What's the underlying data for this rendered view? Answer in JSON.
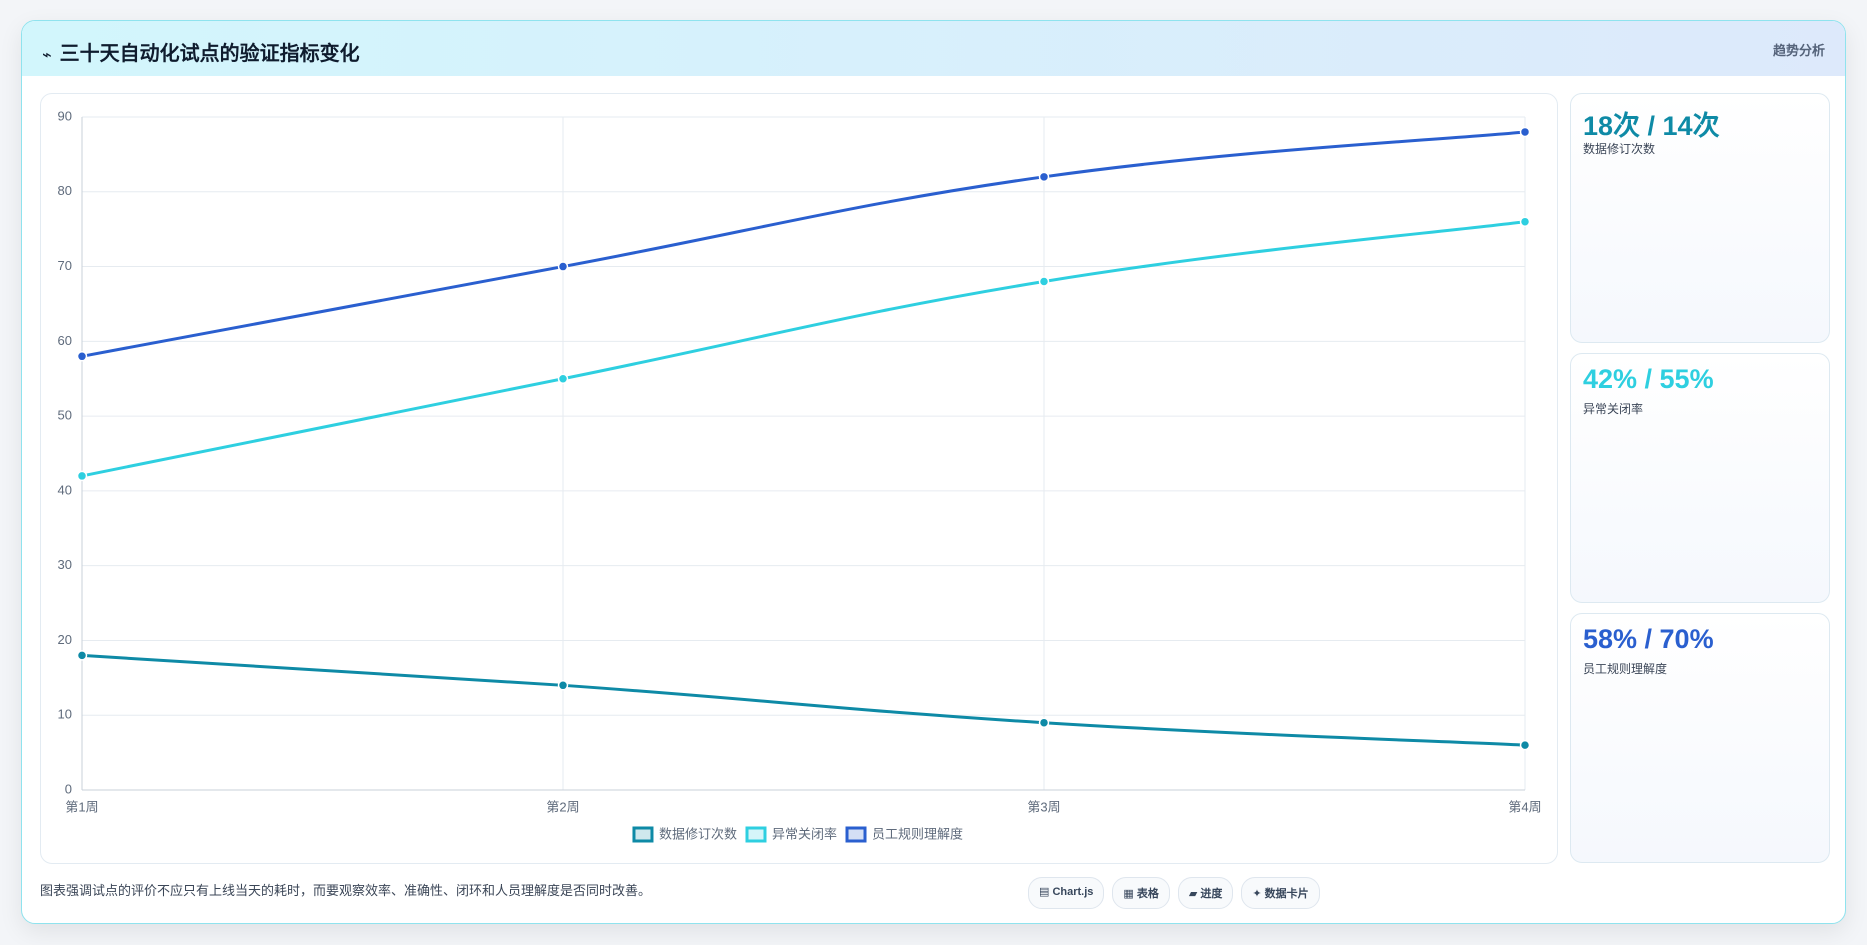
{
  "header": {
    "icon": "⌁",
    "title": "三十天自动化试点的验证指标变化",
    "tag": "趋势分析"
  },
  "chart_data": {
    "type": "line",
    "categories": [
      "第1周",
      "第2周",
      "第3周",
      "第4周"
    ],
    "series": [
      {
        "name": "数据修订次数",
        "color": "#0e8aa6",
        "values": [
          18,
          14,
          9,
          6
        ]
      },
      {
        "name": "异常关闭率",
        "color": "#2ecfe0",
        "values": [
          42,
          55,
          68,
          76
        ]
      },
      {
        "name": "员工规则理解度",
        "color": "#2a5fcf",
        "values": [
          58,
          70,
          82,
          88
        ]
      }
    ],
    "ylim": [
      0,
      90
    ],
    "yticks": [
      0,
      10,
      20,
      30,
      40,
      50,
      60,
      70,
      80,
      90
    ],
    "grid": true,
    "legend": "bottom"
  },
  "cards": [
    {
      "value": "18次 / 14次",
      "label": "数据修订次数"
    },
    {
      "value": "42% / 55%",
      "label": "异常关闭率"
    },
    {
      "value": "58% / 70%",
      "label": "员工规则理解度"
    }
  ],
  "footer": {
    "note": "图表强调试点的评价不应只有上线当天的耗时，而要观察效率、准确性、闭环和人员理解度是否同时改善。",
    "buttons": [
      "▤ Chart.js",
      "▦ 表格",
      "▰ 进度",
      "✦ 数据卡片"
    ]
  }
}
